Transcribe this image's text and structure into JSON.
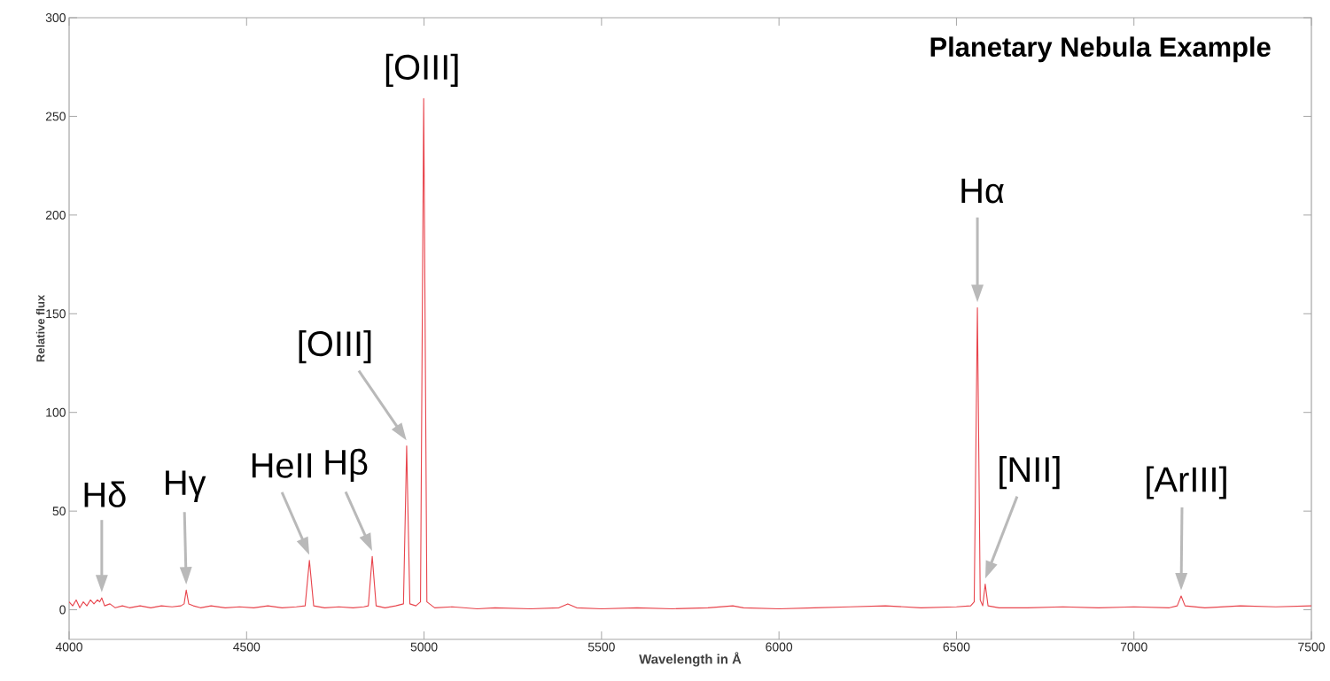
{
  "chart_data": {
    "type": "line",
    "title": "Planetary Nebula Example",
    "xlabel": "Wavelength in Å",
    "ylabel": "Relative flux",
    "xlim": [
      4000,
      7500
    ],
    "ylim": [
      -15,
      300
    ],
    "xticks": [
      4000,
      4500,
      5000,
      5500,
      6000,
      6500,
      7000,
      7500
    ],
    "yticks": [
      0,
      50,
      100,
      150,
      200,
      250,
      300
    ],
    "grid": false,
    "marker": "none",
    "line_style": "solid",
    "series": [
      {
        "color": "#e8444c",
        "x": [
          4000,
          4010,
          4020,
          4030,
          4040,
          4050,
          4060,
          4070,
          4080,
          4086,
          4092,
          4100,
          4115,
          4130,
          4150,
          4170,
          4200,
          4230,
          4260,
          4290,
          4315,
          4324,
          4330,
          4337,
          4350,
          4370,
          4400,
          4440,
          4480,
          4520,
          4560,
          4600,
          4640,
          4665,
          4677,
          4689,
          4720,
          4760,
          4800,
          4830,
          4843,
          4854,
          4865,
          4890,
          4920,
          4942,
          4951,
          4960,
          4977,
          4990,
          4999,
          5008,
          5030,
          5080,
          5150,
          5200,
          5300,
          5380,
          5405,
          5430,
          5500,
          5600,
          5700,
          5800,
          5870,
          5900,
          6000,
          6100,
          6200,
          6300,
          6400,
          6500,
          6540,
          6550,
          6559,
          6567,
          6574,
          6581,
          6589,
          6620,
          6700,
          6800,
          6900,
          7000,
          7100,
          7122,
          7133,
          7144,
          7200,
          7300,
          7400,
          7500
        ],
        "values": [
          4,
          2,
          5,
          1,
          4,
          2,
          5,
          3,
          5,
          4,
          6,
          2,
          3,
          1,
          2,
          1,
          2,
          1,
          2,
          1.5,
          2,
          3,
          10,
          3,
          2,
          1,
          2,
          1,
          1.5,
          1,
          2,
          1,
          1.5,
          2,
          25,
          2,
          1,
          1.5,
          1,
          1.5,
          2,
          27,
          2,
          1,
          2,
          3,
          83,
          3,
          2,
          4,
          259,
          4,
          1,
          1.5,
          0.5,
          1,
          0.5,
          1,
          3,
          1,
          0.5,
          1,
          0.5,
          1,
          2,
          1,
          0.5,
          1,
          1.5,
          2,
          1,
          1.5,
          2,
          4,
          153,
          5,
          2,
          13,
          2,
          1,
          1,
          1.5,
          1,
          1.5,
          1,
          2,
          7,
          2,
          1,
          2,
          1.5,
          2
        ]
      }
    ],
    "annotations": [
      {
        "text": "Hδ",
        "x": 4092,
        "y": 6
      },
      {
        "text": "Hγ",
        "x": 4330,
        "y": 10
      },
      {
        "text": "HeII",
        "x": 4677,
        "y": 25
      },
      {
        "text": "Hβ",
        "x": 4854,
        "y": 27
      },
      {
        "text": "[OIII]",
        "x": 4951,
        "y": 83
      },
      {
        "text": "[OIII]",
        "x": 4999,
        "y": 259
      },
      {
        "text": "Hα",
        "x": 6559,
        "y": 153
      },
      {
        "text": "[NII]",
        "x": 6581,
        "y": 13
      },
      {
        "text": "[ArIII]",
        "x": 7133,
        "y": 7
      }
    ]
  }
}
